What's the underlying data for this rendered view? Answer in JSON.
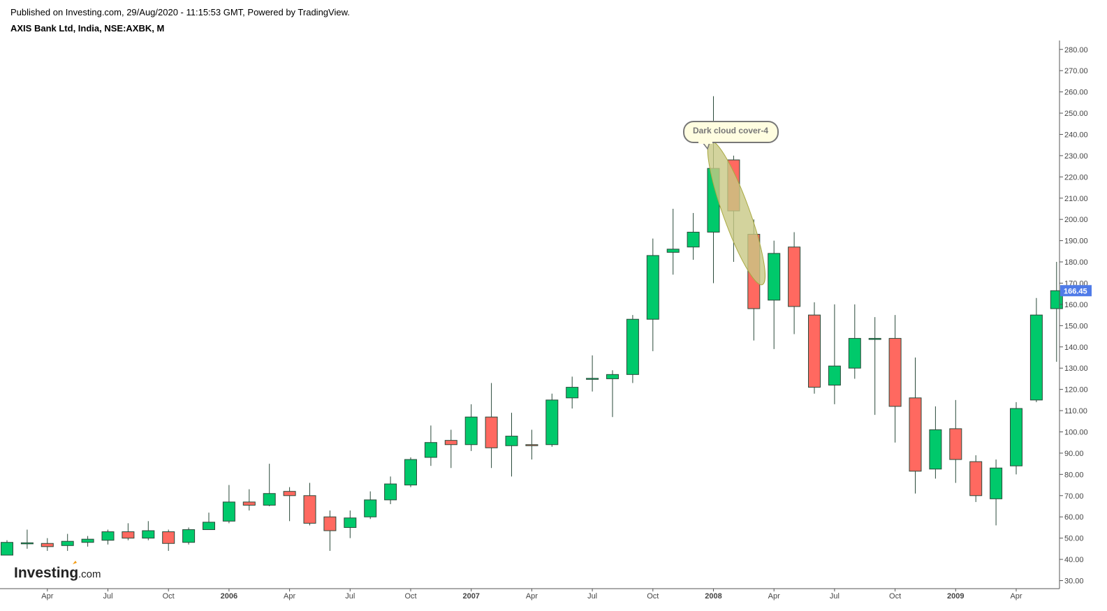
{
  "header": {
    "published": "Published on Investing.com, 29/Aug/2020 - 11:15:53 GMT, Powered by TradingView.",
    "symbol": "AXIS Bank Ltd, India, NSE:AXBK, M"
  },
  "logo": {
    "main": "Investing",
    "suffix": ".com",
    "dot_color": "#f39c12"
  },
  "colors": {
    "up": "#00c96b",
    "down": "#ff6960",
    "wick": "#2a4a3a",
    "axis": "#555555",
    "price_label_bg": "#4f7be8",
    "annotation_fill": "#c8c884"
  },
  "annotation": {
    "label": "Dark cloud cover-4"
  },
  "last_price_label": "166.45",
  "chart_data": {
    "type": "candlestick",
    "title": "AXIS Bank Ltd, India, NSE:AXBK, M",
    "ylim": [
      25,
      285
    ],
    "y_ticks": [
      "30.00",
      "40.00",
      "50.00",
      "60.00",
      "70.00",
      "80.00",
      "90.00",
      "100.00",
      "110.00",
      "120.00",
      "130.00",
      "140.00",
      "150.00",
      "160.00",
      "170.00",
      "180.00",
      "190.00",
      "200.00",
      "210.00",
      "220.00",
      "230.00",
      "240.00",
      "250.00",
      "260.00",
      "270.00",
      "280.00"
    ],
    "x_ticks": [
      {
        "label": "Apr",
        "index": 2,
        "bold": false
      },
      {
        "label": "Jul",
        "index": 5,
        "bold": false
      },
      {
        "label": "Oct",
        "index": 8,
        "bold": false
      },
      {
        "label": "2006",
        "index": 11,
        "bold": true
      },
      {
        "label": "Apr",
        "index": 14,
        "bold": false
      },
      {
        "label": "Jul",
        "index": 17,
        "bold": false
      },
      {
        "label": "Oct",
        "index": 20,
        "bold": false
      },
      {
        "label": "2007",
        "index": 23,
        "bold": true
      },
      {
        "label": "Apr",
        "index": 26,
        "bold": false
      },
      {
        "label": "Jul",
        "index": 29,
        "bold": false
      },
      {
        "label": "Oct",
        "index": 32,
        "bold": false
      },
      {
        "label": "2008",
        "index": 35,
        "bold": true
      },
      {
        "label": "Apr",
        "index": 38,
        "bold": false
      },
      {
        "label": "Jul",
        "index": 41,
        "bold": false
      },
      {
        "label": "Oct",
        "index": 44,
        "bold": false
      },
      {
        "label": "2009",
        "index": 47,
        "bold": true
      },
      {
        "label": "Apr",
        "index": 50,
        "bold": false
      }
    ],
    "last_price": 166.45,
    "candles": [
      {
        "o": 42,
        "h": 49,
        "l": 42,
        "c": 48
      },
      {
        "o": 47.5,
        "h": 54,
        "l": 45,
        "c": 47.8
      },
      {
        "o": 47.5,
        "h": 50,
        "l": 44,
        "c": 46
      },
      {
        "o": 46.5,
        "h": 52,
        "l": 44,
        "c": 48.5
      },
      {
        "o": 48,
        "h": 51,
        "l": 46,
        "c": 49.5
      },
      {
        "o": 49,
        "h": 54,
        "l": 47,
        "c": 53
      },
      {
        "o": 53,
        "h": 57,
        "l": 49,
        "c": 50
      },
      {
        "o": 50,
        "h": 58,
        "l": 49,
        "c": 53.5
      },
      {
        "o": 53,
        "h": 54,
        "l": 44,
        "c": 47.5
      },
      {
        "o": 48,
        "h": 55,
        "l": 47,
        "c": 54
      },
      {
        "o": 54,
        "h": 62,
        "l": 54,
        "c": 57.5
      },
      {
        "o": 58,
        "h": 75,
        "l": 57,
        "c": 67
      },
      {
        "o": 67,
        "h": 73,
        "l": 63,
        "c": 65.5
      },
      {
        "o": 65.5,
        "h": 85,
        "l": 65,
        "c": 71
      },
      {
        "o": 72,
        "h": 74,
        "l": 58,
        "c": 70
      },
      {
        "o": 70,
        "h": 76,
        "l": 56,
        "c": 57
      },
      {
        "o": 60,
        "h": 63,
        "l": 44,
        "c": 53.5
      },
      {
        "o": 55,
        "h": 63,
        "l": 50,
        "c": 59.5
      },
      {
        "o": 60,
        "h": 72,
        "l": 59,
        "c": 68
      },
      {
        "o": 68,
        "h": 79,
        "l": 66,
        "c": 75.5
      },
      {
        "o": 75,
        "h": 88,
        "l": 74,
        "c": 87
      },
      {
        "o": 88,
        "h": 103,
        "l": 84,
        "c": 95
      },
      {
        "o": 96,
        "h": 101,
        "l": 83,
        "c": 94
      },
      {
        "o": 94,
        "h": 113,
        "l": 91,
        "c": 107
      },
      {
        "o": 107,
        "h": 123,
        "l": 83,
        "c": 92.5
      },
      {
        "o": 93.5,
        "h": 109,
        "l": 79,
        "c": 98
      },
      {
        "o": 94,
        "h": 101,
        "l": 87,
        "c": 93.5
      },
      {
        "o": 94,
        "h": 118,
        "l": 93,
        "c": 115
      },
      {
        "o": 116,
        "h": 126,
        "l": 111,
        "c": 121
      },
      {
        "o": 125,
        "h": 136,
        "l": 119,
        "c": 125.2
      },
      {
        "o": 125,
        "h": 129,
        "l": 107,
        "c": 127
      },
      {
        "o": 127,
        "h": 155,
        "l": 123,
        "c": 153
      },
      {
        "o": 153,
        "h": 191,
        "l": 138,
        "c": 183
      },
      {
        "o": 184.5,
        "h": 205,
        "l": 174,
        "c": 186
      },
      {
        "o": 187,
        "h": 203,
        "l": 181,
        "c": 194
      },
      {
        "o": 194,
        "h": 258,
        "l": 170,
        "c": 224
      },
      {
        "o": 228,
        "h": 230,
        "l": 180,
        "c": 204
      },
      {
        "o": 193,
        "h": 200,
        "l": 143,
        "c": 158
      },
      {
        "o": 162,
        "h": 190,
        "l": 139,
        "c": 184
      },
      {
        "o": 187,
        "h": 194,
        "l": 146,
        "c": 159
      },
      {
        "o": 155,
        "h": 161,
        "l": 118,
        "c": 121
      },
      {
        "o": 122,
        "h": 160,
        "l": 113,
        "c": 131
      },
      {
        "o": 130,
        "h": 160,
        "l": 125,
        "c": 144
      },
      {
        "o": 144,
        "h": 154,
        "l": 108,
        "c": 144
      },
      {
        "o": 144,
        "h": 155,
        "l": 95,
        "c": 112
      },
      {
        "o": 116,
        "h": 135,
        "l": 71,
        "c": 81.5
      },
      {
        "o": 82.5,
        "h": 112,
        "l": 78,
        "c": 101
      },
      {
        "o": 101.5,
        "h": 115,
        "l": 76,
        "c": 87
      },
      {
        "o": 86,
        "h": 89,
        "l": 67,
        "c": 70
      },
      {
        "o": 68.5,
        "h": 87,
        "l": 56,
        "c": 83
      },
      {
        "o": 84,
        "h": 114,
        "l": 80,
        "c": 111
      },
      {
        "o": 115,
        "h": 163,
        "l": 114,
        "c": 155
      },
      {
        "o": 158,
        "h": 180,
        "l": 133,
        "c": 166.45
      }
    ]
  }
}
